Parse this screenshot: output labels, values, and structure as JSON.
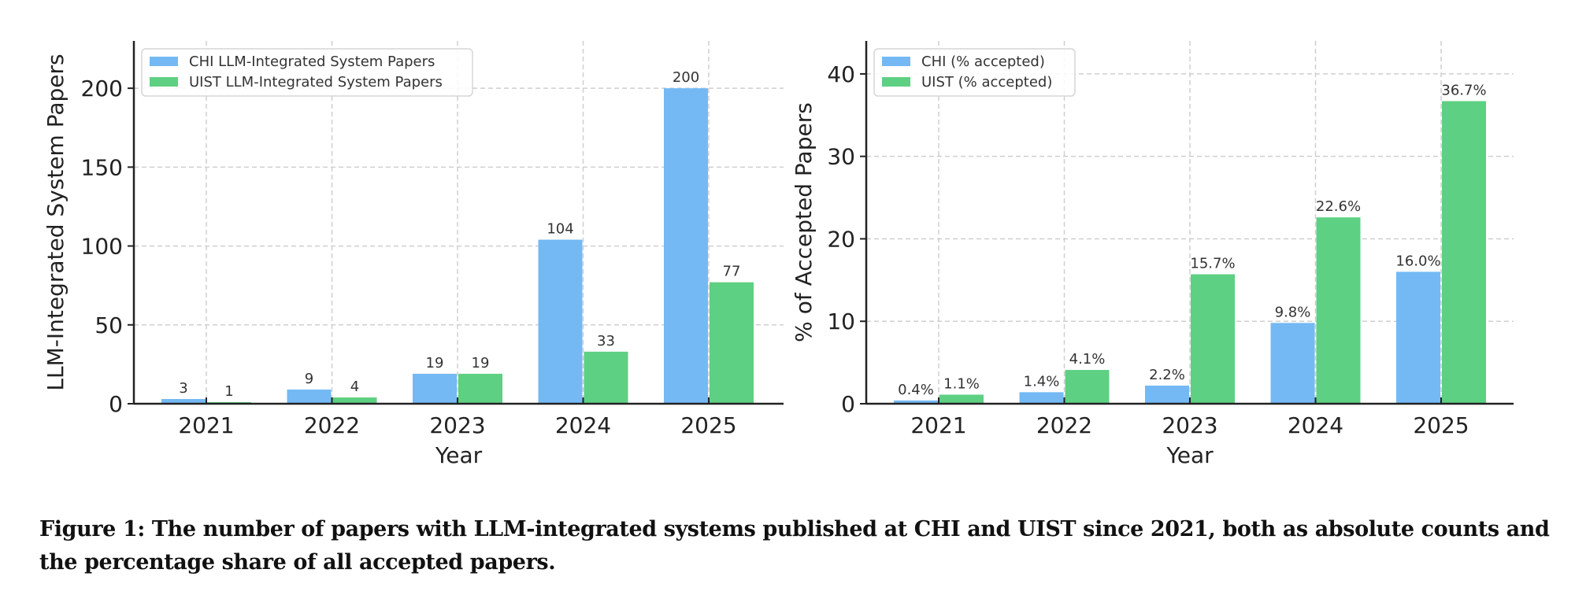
{
  "chart_data": [
    {
      "type": "bar",
      "title": "",
      "categories": [
        "2021",
        "2022",
        "2023",
        "2024",
        "2025"
      ],
      "xlabel": "Year",
      "ylabel": "LLM-Integrated System Papers",
      "ylim": [
        0,
        230
      ],
      "yticks": [
        0,
        50,
        100,
        150,
        200
      ],
      "grid": true,
      "legend_position": "top-left",
      "series": [
        {
          "name": "CHI LLM-Integrated System Papers",
          "color": "#74b9f4",
          "values": [
            3,
            9,
            19,
            104,
            200
          ],
          "labels": [
            "3",
            "9",
            "19",
            "104",
            "200"
          ]
        },
        {
          "name": "UIST LLM-Integrated System Papers",
          "color": "#5ed083",
          "values": [
            1,
            4,
            19,
            33,
            77
          ],
          "labels": [
            "1",
            "4",
            "19",
            "33",
            "77"
          ]
        }
      ]
    },
    {
      "type": "bar",
      "title": "",
      "categories": [
        "2021",
        "2022",
        "2023",
        "2024",
        "2025"
      ],
      "xlabel": "Year",
      "ylabel": "% of Accepted Papers",
      "ylim": [
        0,
        44
      ],
      "yticks": [
        0,
        10,
        20,
        30,
        40
      ],
      "grid": true,
      "legend_position": "top-left",
      "series": [
        {
          "name": "CHI (% accepted)",
          "color": "#74b9f4",
          "values": [
            0.4,
            1.4,
            2.2,
            9.8,
            16.0
          ],
          "labels": [
            "0.4%",
            "1.4%",
            "2.2%",
            "9.8%",
            "16.0%"
          ]
        },
        {
          "name": "UIST (% accepted)",
          "color": "#5ed083",
          "values": [
            1.1,
            4.1,
            15.7,
            22.6,
            36.7
          ],
          "labels": [
            "1.1%",
            "4.1%",
            "15.7%",
            "22.6%",
            "36.7%"
          ]
        }
      ]
    }
  ],
  "caption": "Figure 1: The number of papers with LLM-integrated systems published at CHI and UIST since 2021, both as absolute counts and the percentage share of all accepted papers."
}
